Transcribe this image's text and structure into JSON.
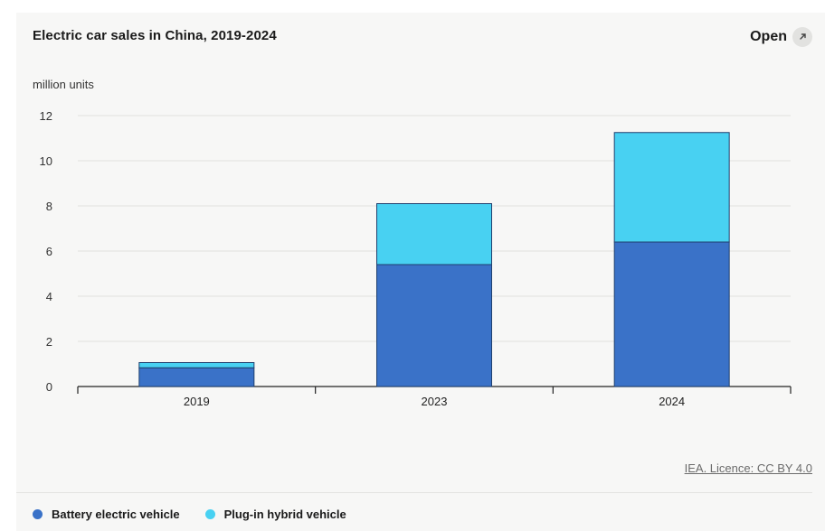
{
  "header": {
    "title": "Electric car sales in China, 2019-2024",
    "open_label": "Open"
  },
  "icons": {
    "open": "external-link-icon"
  },
  "source_text": "IEA. Licence: CC BY 4.0",
  "colors": {
    "bev": "#3a72c8",
    "phev": "#48d1f2",
    "grid": "#e0e0de",
    "axis": "#222222"
  },
  "chart_data": {
    "type": "bar",
    "stacked": true,
    "title": "Electric car sales in China, 2019-2024",
    "ylabel": "million units",
    "xlabel": "",
    "categories": [
      "2019",
      "2023",
      "2024"
    ],
    "ylim": [
      0,
      12
    ],
    "yticks": [
      0,
      2,
      4,
      6,
      8,
      10,
      12
    ],
    "grid": true,
    "legend_position": "bottom-left",
    "series": [
      {
        "name": "Battery electric vehicle",
        "values": [
          0.83,
          5.4,
          6.4
        ],
        "color": "#3a72c8"
      },
      {
        "name": "Plug-in hybrid vehicle",
        "values": [
          0.23,
          2.7,
          4.85
        ],
        "color": "#48d1f2"
      }
    ]
  }
}
